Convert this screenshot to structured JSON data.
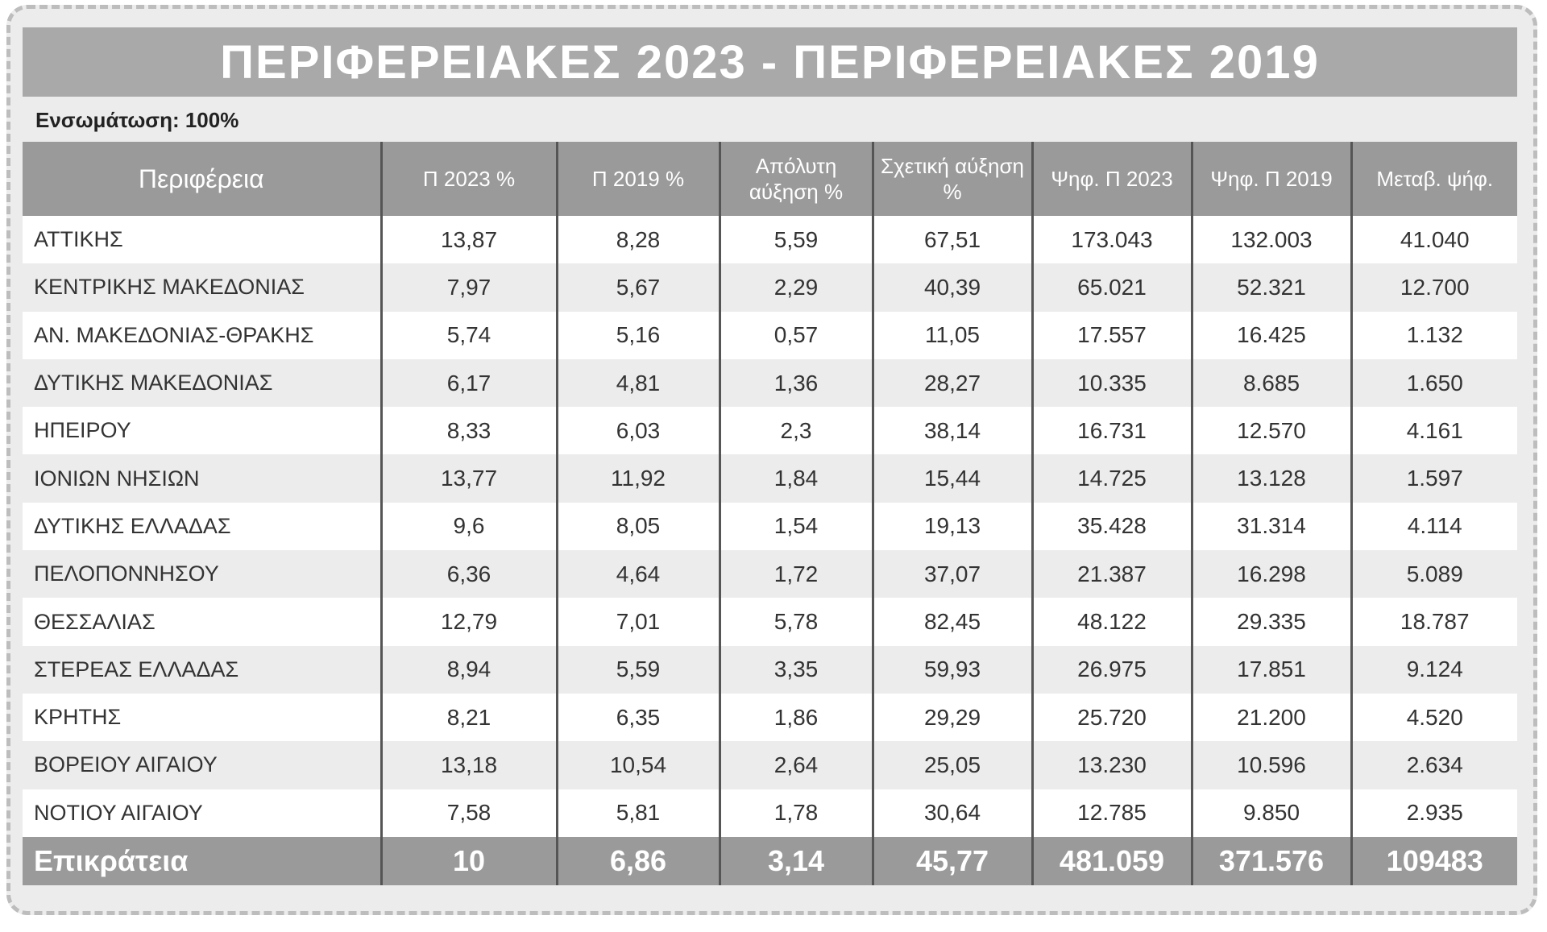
{
  "title": "ΠΕΡΙΦΕΡΕΙΑΚΕΣ 2023 - ΠΕΡΙΦΕΡΕΙΑΚΕΣ 2019",
  "subtitle": "Ενσωμάτωση: 100%",
  "headers": [
    "Περιφέρεια",
    "Π 2023 %",
    "Π 2019 %",
    "Απόλυτη αύξηση %",
    "Σχετική αύξηση %",
    "Ψηφ. Π 2023",
    "Ψηφ. Π 2019",
    "Μεταβ. ψήφ."
  ],
  "rows": [
    [
      "ΑΤΤΙΚΗΣ",
      "13,87",
      "8,28",
      "5,59",
      "67,51",
      "173.043",
      "132.003",
      "41.040"
    ],
    [
      "ΚΕΝΤΡΙΚΗΣ ΜΑΚΕΔΟΝΙΑΣ",
      "7,97",
      "5,67",
      "2,29",
      "40,39",
      "65.021",
      "52.321",
      "12.700"
    ],
    [
      "ΑΝ. ΜΑΚΕΔΟΝΙΑΣ-ΘΡΑΚΗΣ",
      "5,74",
      "5,16",
      "0,57",
      "11,05",
      "17.557",
      "16.425",
      "1.132"
    ],
    [
      "ΔΥΤΙΚΗΣ ΜΑΚΕΔΟΝΙΑΣ",
      "6,17",
      "4,81",
      "1,36",
      "28,27",
      "10.335",
      "8.685",
      "1.650"
    ],
    [
      "ΗΠΕΙΡΟΥ",
      "8,33",
      "6,03",
      "2,3",
      "38,14",
      "16.731",
      "12.570",
      "4.161"
    ],
    [
      "ΙΟΝΙΩΝ ΝΗΣΙΩΝ",
      "13,77",
      "11,92",
      "1,84",
      "15,44",
      "14.725",
      "13.128",
      "1.597"
    ],
    [
      "ΔΥΤΙΚΗΣ ΕΛΛΑΔΑΣ",
      "9,6",
      "8,05",
      "1,54",
      "19,13",
      "35.428",
      "31.314",
      "4.114"
    ],
    [
      "ΠΕΛΟΠΟΝΝΗΣΟΥ",
      "6,36",
      "4,64",
      "1,72",
      "37,07",
      "21.387",
      "16.298",
      "5.089"
    ],
    [
      "ΘΕΣΣΑΛΙΑΣ",
      "12,79",
      "7,01",
      "5,78",
      "82,45",
      "48.122",
      "29.335",
      "18.787"
    ],
    [
      "ΣΤΕΡΕΑΣ ΕΛΛΑΔΑΣ",
      "8,94",
      "5,59",
      "3,35",
      "59,93",
      "26.975",
      "17.851",
      "9.124"
    ],
    [
      "ΚΡΗΤΗΣ",
      "8,21",
      "6,35",
      "1,86",
      "29,29",
      "25.720",
      "21.200",
      "4.520"
    ],
    [
      "ΒΟΡΕΙΟΥ ΑΙΓΑΙΟΥ",
      "13,18",
      "10,54",
      "2,64",
      "25,05",
      "13.230",
      "10.596",
      "2.634"
    ],
    [
      "ΝΟΤΙΟΥ ΑΙΓΑΙΟΥ",
      "7,58",
      "5,81",
      "1,78",
      "30,64",
      "12.785",
      "9.850",
      "2.935"
    ]
  ],
  "total": [
    "Επικράτεια",
    "10",
    "6,86",
    "3,14",
    "45,77",
    "481.059",
    "371.576",
    "109483"
  ]
}
